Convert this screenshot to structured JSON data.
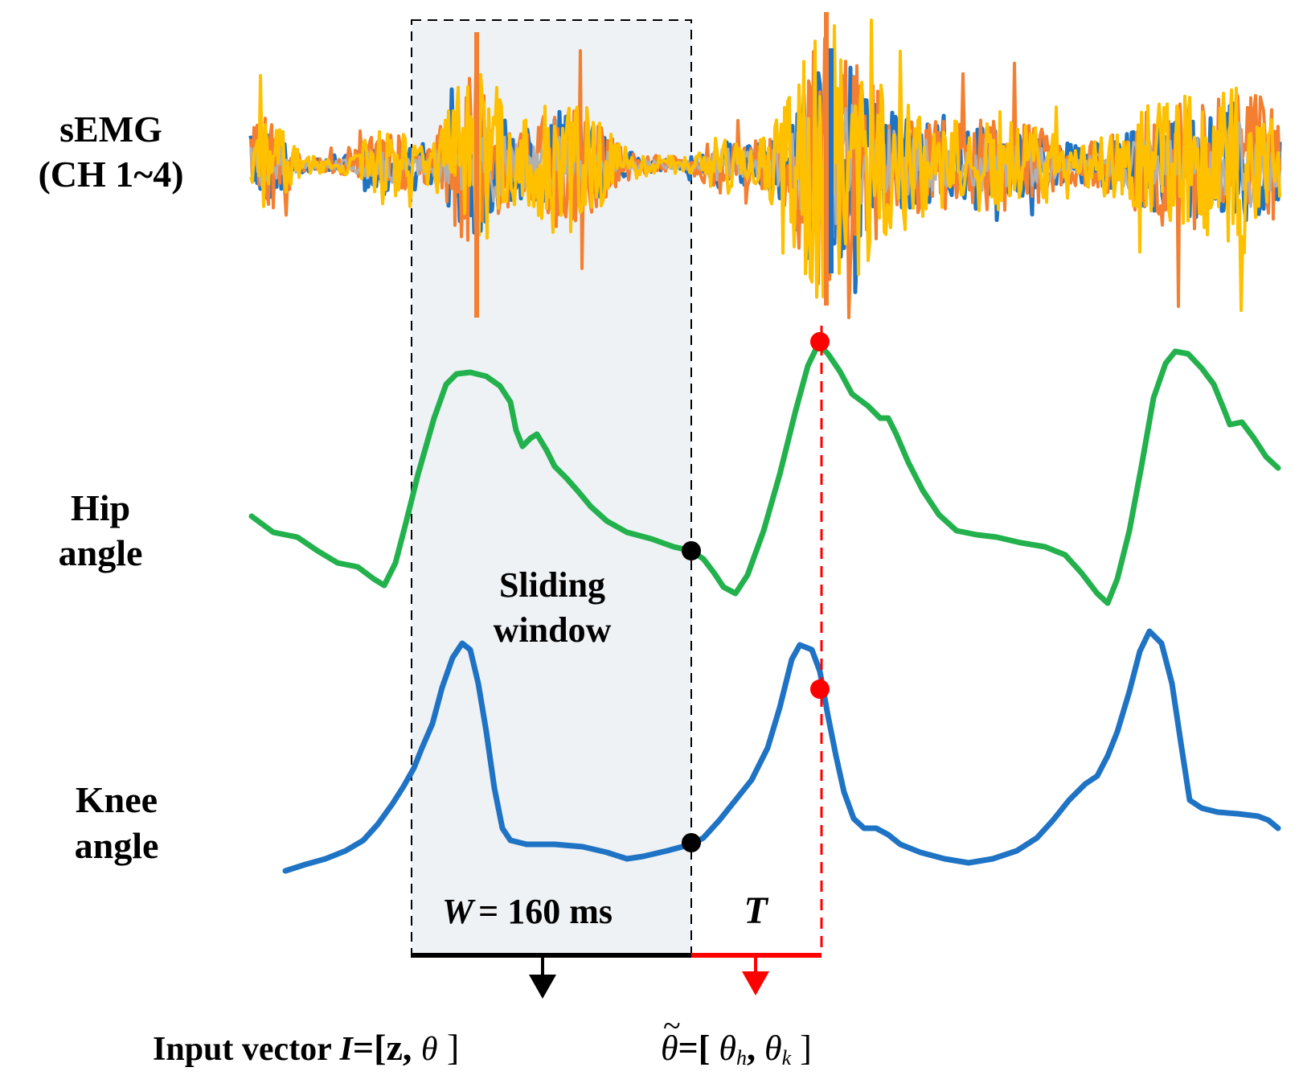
{
  "labels": {
    "semg_line1": "sEMG",
    "semg_line2": "(CH 1~4)",
    "hip_line1": "Hip",
    "hip_line2": "angle",
    "knee_line1": "Knee",
    "knee_line2": "angle",
    "sliding_line1": "Sliding",
    "sliding_line2": "window",
    "window_var": "W",
    "window_value": "= 160 ms",
    "horizon_var": "T",
    "input_prefix": "Input vector ",
    "input_var": "I",
    "input_eq": "=[z, ",
    "input_theta": "θ",
    "input_close": " ]",
    "output_theta": "θ",
    "output_eq": "=[ ",
    "output_theta_h": "θ",
    "output_h_sub": "h",
    "output_comma": ", ",
    "output_theta_k": "θ",
    "output_k_sub": "k",
    "output_close": " ]"
  },
  "colors": {
    "hip": "#22b14c",
    "knee": "#1f73c4",
    "emg_ch1": "#1f73c4",
    "emg_ch2": "#f47f30",
    "emg_ch3": "#b0b0b0",
    "emg_ch4": "#ffc000",
    "prediction": "#ff0000",
    "window_fill": "#eef2f5"
  },
  "window_ms": 160
}
